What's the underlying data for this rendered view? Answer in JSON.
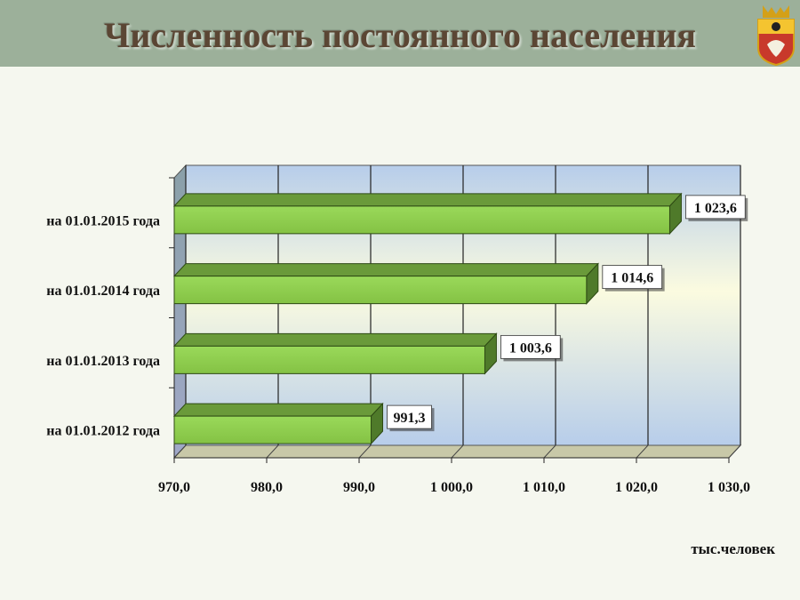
{
  "title": "Численность постоянного населения",
  "unit_label": "тыс.человек",
  "colors": {
    "header": "#9cb09a",
    "title": "#5b4634",
    "bar_front": "#92d050",
    "bar_top": "#6a9a3a",
    "bar_side": "#4f7a2a"
  },
  "emblem": {
    "icon": "city-coat-of-arms-icon"
  },
  "chart_data": {
    "type": "bar",
    "orientation": "horizontal",
    "categories": [
      "на 01.01.2015 года",
      "на 01.01.2014 года",
      "на 01.01.2013 года",
      "на 01.01.2012 года"
    ],
    "values": [
      1023.6,
      1014.6,
      1003.6,
      991.3
    ],
    "data_labels": [
      "1 023,6",
      "1 014,6",
      "1 003,6",
      "991,3"
    ],
    "xlim": [
      970,
      1030
    ],
    "xticks": [
      970,
      980,
      990,
      1000,
      1010,
      1020,
      1030
    ],
    "xtick_labels": [
      "970,0",
      "980,0",
      "990,0",
      "1 000,0",
      "1 010,0",
      "1 020,0",
      "1 030,0"
    ],
    "grid": true,
    "style": "3d"
  }
}
